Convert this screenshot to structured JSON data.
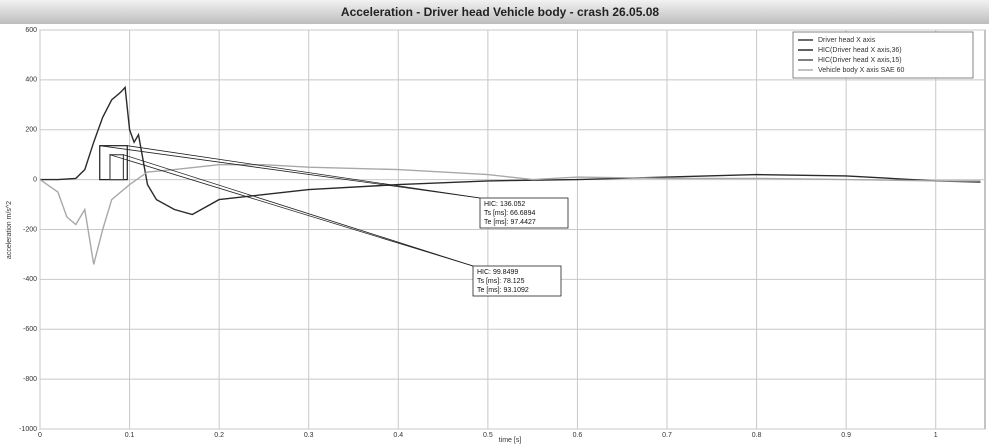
{
  "chart_data": {
    "type": "line",
    "title": "Acceleration - Driver head Vehicle body - crash 26.05.08",
    "x_label": "time [s]",
    "y_label": "acceleration m/s^2",
    "xlim": [
      0,
      1.055
    ],
    "ylim": [
      -1000,
      600
    ],
    "xticks": [
      0,
      0.1,
      0.2,
      0.3,
      0.4,
      0.5,
      0.6,
      0.7,
      0.8,
      0.9,
      1
    ],
    "yticks": [
      -1000,
      -800,
      -600,
      -400,
      -200,
      0,
      200,
      400,
      600
    ],
    "grid": true,
    "legend": "upper right",
    "series": [
      {
        "name": "Driver head X axis",
        "color": "#2a2a2a",
        "x": [
          0,
          0.02,
          0.04,
          0.05,
          0.06,
          0.07,
          0.08,
          0.09,
          0.095,
          0.1,
          0.105,
          0.11,
          0.12,
          0.13,
          0.15,
          0.17,
          0.2,
          0.25,
          0.3,
          0.4,
          0.5,
          0.6,
          0.7,
          0.8,
          0.9,
          1.0,
          1.05
        ],
        "values": [
          0,
          0,
          5,
          40,
          150,
          250,
          320,
          350,
          370,
          200,
          150,
          180,
          -20,
          -80,
          -120,
          -140,
          -80,
          -60,
          -40,
          -20,
          -5,
          0,
          10,
          20,
          15,
          -5,
          -10
        ]
      },
      {
        "name": "Vehicle body X axis SAE 60",
        "color": "#a8a8a8",
        "x": [
          0,
          0.02,
          0.03,
          0.04,
          0.05,
          0.06,
          0.07,
          0.08,
          0.1,
          0.12,
          0.15,
          0.2,
          0.25,
          0.3,
          0.4,
          0.5,
          0.55,
          0.6,
          0.7,
          0.8,
          0.9,
          1.0,
          1.05
        ],
        "values": [
          0,
          -50,
          -150,
          -180,
          -120,
          -340,
          -200,
          -80,
          -20,
          30,
          40,
          60,
          60,
          50,
          40,
          20,
          0,
          10,
          5,
          5,
          0,
          -5,
          -5
        ]
      }
    ],
    "hic": [
      {
        "name": "HIC(Driver head X axis,36)",
        "color": "#1e1e1e",
        "hic_text": "HIC: 136.052",
        "ts_text": "Ts [ms]: 66.6894",
        "te_text": "Te [ms]: 97.4427",
        "hic": 136.052,
        "ts": 66.6894,
        "te": 97.4427
      },
      {
        "name": "HIC(Driver head X axis,15)",
        "color": "#4a4a4a",
        "hic_text": "HIC: 99.8499",
        "ts_text": "Ts [ms]: 78.125",
        "te_text": "Te [ms]: 93.1092",
        "hic": 99.8499,
        "ts": 78.125,
        "te": 93.1092
      }
    ]
  }
}
